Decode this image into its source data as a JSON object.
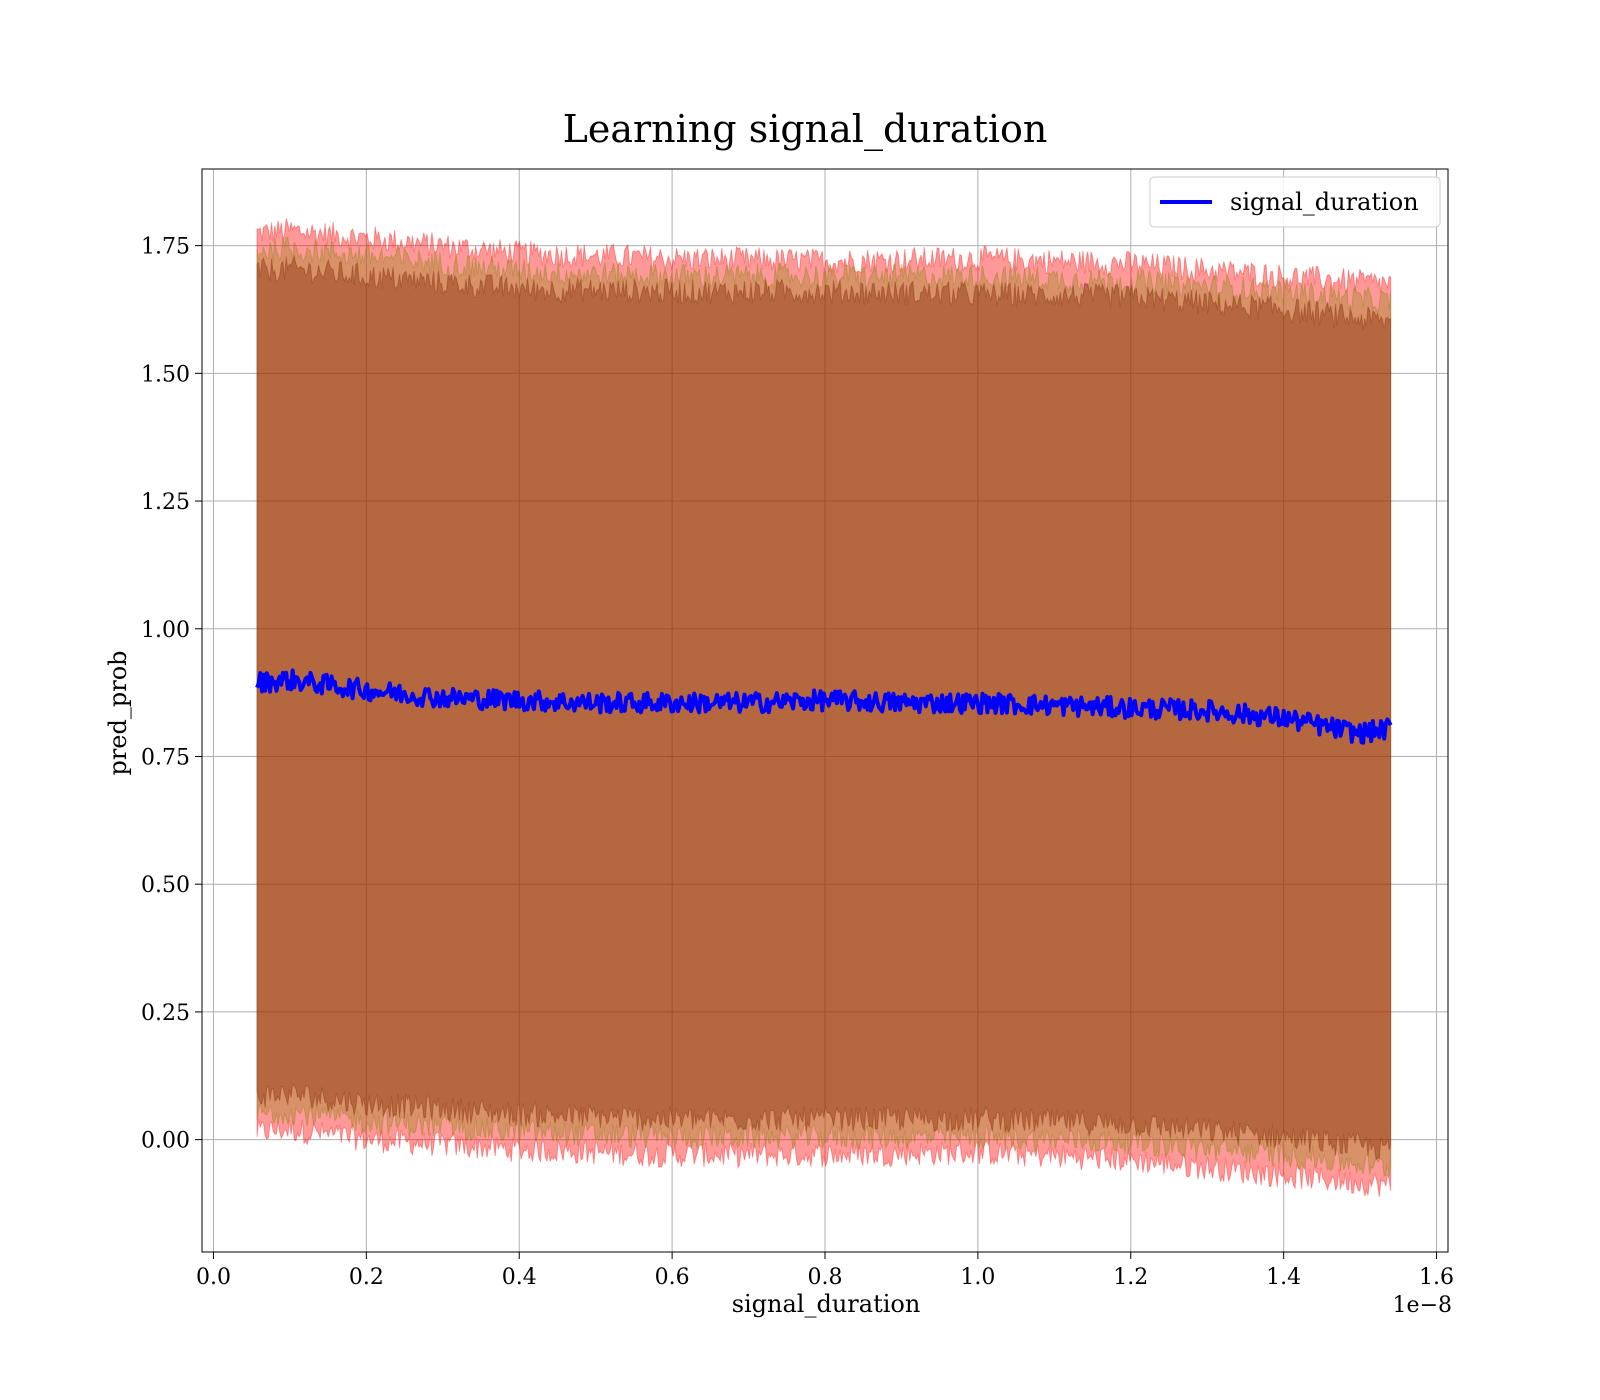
{
  "chart_data": {
    "type": "line",
    "title": "Learning signal_duration",
    "xlabel": "signal_duration",
    "ylabel": "pred_prob",
    "x_offset_label": "1e−8",
    "xlim": [
      -0.015,
      1.615
    ],
    "ylim": [
      -0.22,
      1.9
    ],
    "x_ticks": [
      0.0,
      0.2,
      0.4,
      0.6,
      0.8,
      1.0,
      1.2,
      1.4,
      1.6
    ],
    "x_tick_labels": [
      "0.0",
      "0.2",
      "0.4",
      "0.6",
      "0.8",
      "1.0",
      "1.2",
      "1.4",
      "1.6"
    ],
    "y_ticks": [
      0.0,
      0.25,
      0.5,
      0.75,
      1.0,
      1.25,
      1.5,
      1.75
    ],
    "y_tick_labels": [
      "0.00",
      "0.25",
      "0.50",
      "0.75",
      "1.00",
      "1.25",
      "1.50",
      "1.75"
    ],
    "grid": true,
    "legend_position": "top-right",
    "x_range": [
      0.057,
      1.54
    ],
    "series": [
      {
        "name": "signal_duration",
        "color": "#0000ff",
        "x": [
          0.06,
          0.1,
          0.15,
          0.2,
          0.3,
          0.4,
          0.5,
          0.6,
          0.7,
          0.8,
          0.9,
          1.0,
          1.1,
          1.2,
          1.3,
          1.4,
          1.5,
          1.54
        ],
        "y": [
          0.895,
          0.9,
          0.89,
          0.88,
          0.865,
          0.86,
          0.855,
          0.855,
          0.855,
          0.86,
          0.855,
          0.855,
          0.85,
          0.845,
          0.84,
          0.825,
          0.795,
          0.805
        ]
      }
    ],
    "bands": [
      {
        "color": "#ff0000",
        "opacity": 0.4,
        "x": [
          0.06,
          0.1,
          0.2,
          0.4,
          0.6,
          0.8,
          1.0,
          1.2,
          1.4,
          1.54
        ],
        "upper": [
          1.775,
          1.78,
          1.765,
          1.735,
          1.725,
          1.72,
          1.725,
          1.715,
          1.69,
          1.675
        ],
        "lower": [
          0.015,
          0.02,
          0.0,
          -0.02,
          -0.03,
          -0.03,
          -0.025,
          -0.04,
          -0.07,
          -0.09
        ]
      },
      {
        "color": "#800000",
        "opacity": 0.4,
        "x": [
          0.06,
          0.1,
          0.2,
          0.4,
          0.6,
          0.8,
          1.0,
          1.2,
          1.4,
          1.54
        ],
        "upper": [
          1.7,
          1.705,
          1.69,
          1.665,
          1.66,
          1.66,
          1.655,
          1.65,
          1.625,
          1.6
        ],
        "lower": [
          0.085,
          0.09,
          0.07,
          0.05,
          0.04,
          0.04,
          0.04,
          0.03,
          0.005,
          -0.02
        ]
      },
      {
        "color": "#808000",
        "opacity": 0.3,
        "x": [
          0.06,
          0.1,
          0.2,
          0.4,
          0.6,
          0.8,
          1.0,
          1.2,
          1.4,
          1.54
        ],
        "upper": [
          1.74,
          1.745,
          1.73,
          1.7,
          1.69,
          1.69,
          1.69,
          1.68,
          1.66,
          1.64
        ],
        "lower": [
          0.05,
          0.055,
          0.035,
          0.015,
          0.005,
          0.005,
          0.005,
          -0.005,
          -0.03,
          -0.055
        ]
      }
    ]
  }
}
